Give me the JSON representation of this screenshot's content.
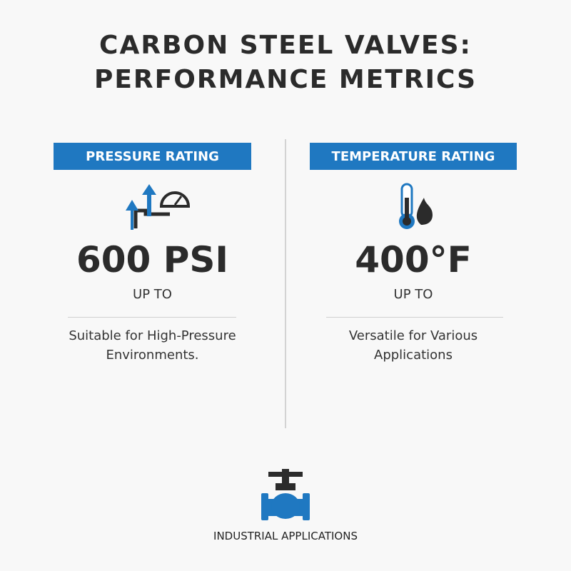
{
  "header": {
    "title": "CARBON STEEL VALVES: PERFORMANCE METRICS"
  },
  "cards": [
    {
      "label": "PRESSURE RATING",
      "value": "600 PSI",
      "qualifier": "UP TO",
      "description": "Suitable for High-Pressure Environments."
    },
    {
      "label": "TEMPERATURE RATING",
      "value": "400°F",
      "qualifier": "UP TO",
      "description": "Versatile for Various Applications"
    }
  ],
  "footer": {
    "label": "INDUSTRIAL APPLICATIONS"
  }
}
